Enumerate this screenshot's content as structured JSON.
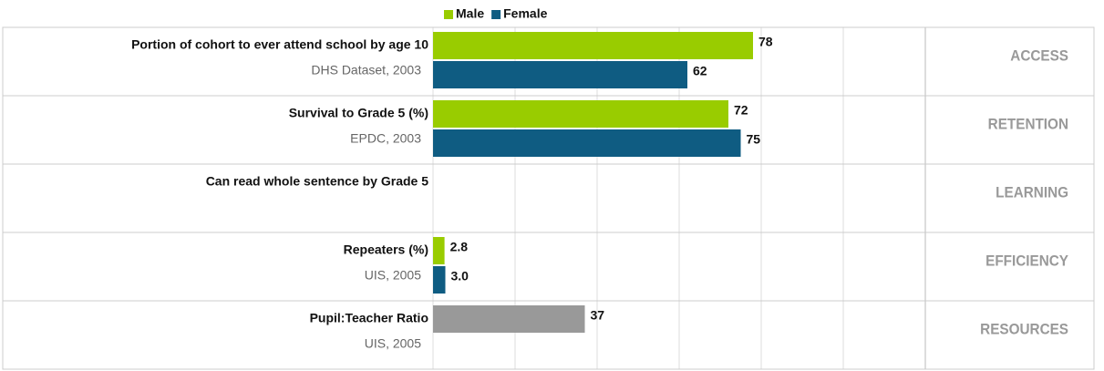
{
  "chart_data": {
    "type": "bar",
    "categories": [
      "Portion of cohort to ever attend school by age 10",
      "Survival to Grade 5 (%)",
      "Can read whole sentence by Grade 5",
      "Repeaters (%)",
      "Pupil:Teacher Ratio"
    ],
    "sources": [
      "DHS Dataset, 2003",
      "EPDC, 2003",
      null,
      "UIS, 2005",
      "UIS, 2005"
    ],
    "sections": [
      "ACCESS",
      "RETENTION",
      "LEARNING",
      "EFFICIENCY",
      "RESOURCES"
    ],
    "series": [
      {
        "name": "Male",
        "color": "#99cc00",
        "values": [
          78,
          72,
          null,
          2.8,
          null
        ]
      },
      {
        "name": "Female",
        "color": "#0f5c82",
        "values": [
          62,
          75,
          null,
          3.0,
          null
        ],
        "value_labels": [
          "62",
          "75",
          null,
          "3.0",
          null
        ]
      }
    ],
    "single_values": [
      null,
      null,
      null,
      null,
      37
    ],
    "single_color": "#999999",
    "xlim": [
      0,
      160
    ],
    "xticks": [
      0,
      20,
      40,
      60,
      80,
      100,
      120
    ],
    "grid": true
  }
}
